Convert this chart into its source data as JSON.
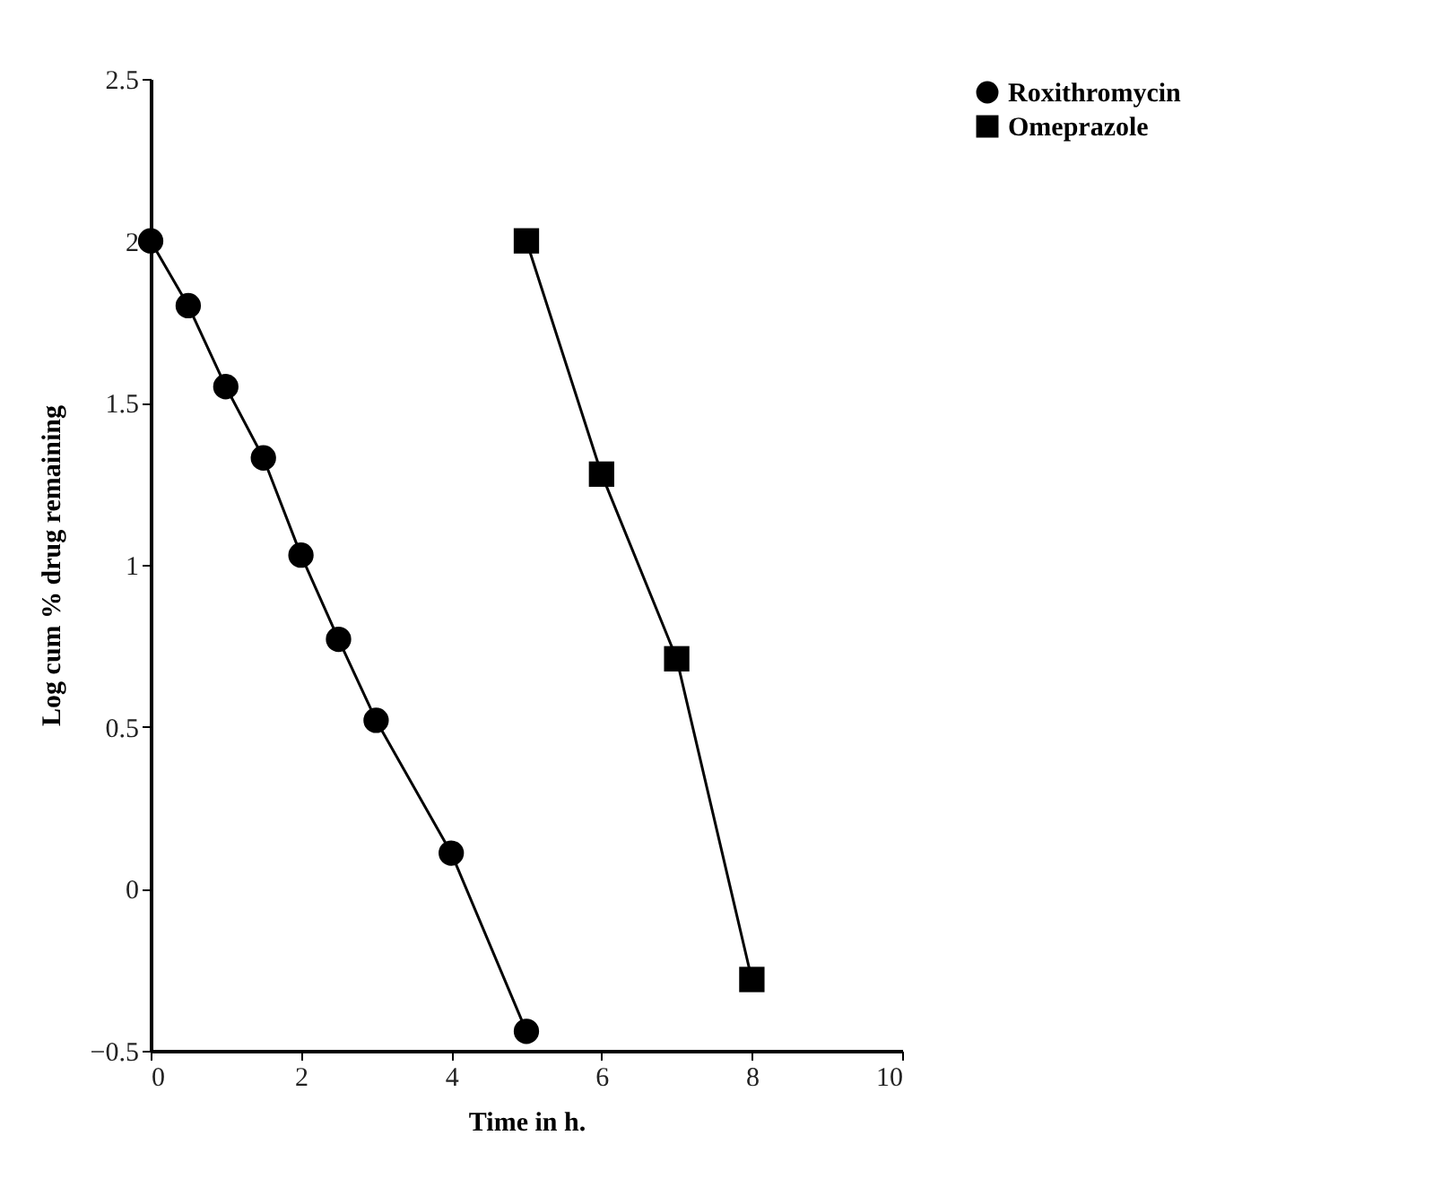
{
  "chart_data": {
    "type": "line",
    "xlabel": "Time in h.",
    "ylabel": "Log cum % drug remaining",
    "xlim": [
      0,
      10
    ],
    "xticks": [
      0,
      2,
      4,
      6,
      8,
      10
    ],
    "ylim": [
      -0.5,
      2.5
    ],
    "yticks": [
      -0.5,
      0,
      0.5,
      1,
      1.5,
      2,
      2.5
    ],
    "grid": false,
    "legend": "right",
    "line_style": "solid",
    "series": [
      {
        "name": "Roxithromycin",
        "color": "#000000",
        "marker": "circle",
        "x": [
          0,
          0.5,
          1,
          1.5,
          2,
          2.5,
          3,
          4,
          5
        ],
        "values": [
          2.0,
          1.8,
          1.55,
          1.33,
          1.03,
          0.77,
          0.52,
          0.11,
          -0.44
        ]
      },
      {
        "name": "Omeprazole",
        "color": "#000000",
        "marker": "square",
        "x": [
          5,
          6,
          7,
          8
        ],
        "values": [
          2.0,
          1.28,
          0.71,
          -0.28
        ]
      }
    ]
  }
}
